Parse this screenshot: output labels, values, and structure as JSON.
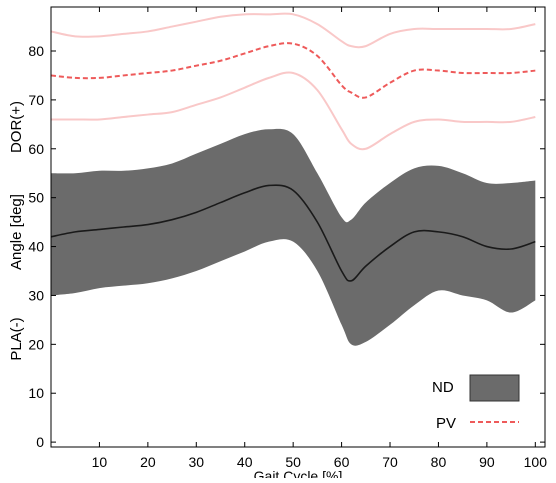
{
  "chart_data": {
    "type": "area",
    "title": "",
    "xlabel": "Gait Cycle [%]",
    "ylabel_top": "DOR(+)",
    "ylabel_middle": "Angle [deg]",
    "ylabel_bottom": "PLA(-)",
    "xlim": [
      0,
      102
    ],
    "ylim": [
      -1,
      89
    ],
    "x_ticks": [
      "10",
      "20",
      "30",
      "40",
      "50",
      "60",
      "70",
      "80",
      "90",
      "100"
    ],
    "y_ticks": [
      "0",
      "10",
      "20",
      "30",
      "40",
      "50",
      "60",
      "70",
      "80"
    ],
    "grid": false,
    "legend_position": "bottom-right",
    "x": [
      0,
      5,
      10,
      15,
      20,
      25,
      30,
      35,
      40,
      45,
      50,
      55,
      60,
      62,
      65,
      70,
      75,
      80,
      85,
      90,
      95,
      100
    ],
    "series": [
      {
        "name": "ND",
        "style": "shaded band with solid mean line",
        "color": "#6b6b6b",
        "mean": [
          42,
          43,
          43.5,
          44,
          44.5,
          45.5,
          47,
          49,
          51,
          52.5,
          51.5,
          45,
          35,
          33,
          36,
          40,
          43,
          43,
          42,
          40,
          39.5,
          41
        ],
        "upper": [
          55,
          55,
          55.5,
          55.5,
          56,
          57,
          59,
          61,
          63,
          64,
          63,
          55,
          46,
          45.5,
          49,
          53,
          56,
          56.5,
          55,
          53,
          53,
          53.5
        ],
        "lower": [
          30,
          30.5,
          31.5,
          32,
          32.5,
          33.5,
          35,
          37,
          39,
          41,
          41,
          35,
          24,
          20,
          20.5,
          24,
          28,
          31,
          30,
          29,
          26.5,
          29
        ]
      },
      {
        "name": "PV",
        "style": "dashed mean with light bands",
        "color": "#ee5a5a",
        "band_color": "#f9c8c8",
        "mean": [
          75,
          74.5,
          74.5,
          75,
          75.5,
          76,
          77,
          78,
          79.5,
          81,
          81.5,
          79,
          73,
          71.5,
          70.5,
          73.5,
          76,
          76,
          75.5,
          75.5,
          75.5,
          76
        ],
        "upper": [
          84,
          83,
          83,
          83.5,
          84,
          85,
          86,
          87,
          87.5,
          87.5,
          87.5,
          85.5,
          82,
          81,
          81,
          83.5,
          84.5,
          84.5,
          84.5,
          84.5,
          84.5,
          85.5
        ],
        "lower": [
          66,
          66,
          66,
          66.5,
          67,
          67.5,
          69,
          70.5,
          72.5,
          74.5,
          75.5,
          72,
          64,
          61,
          60,
          63,
          65.5,
          66,
          65.5,
          65.5,
          65.5,
          66.5
        ]
      }
    ]
  }
}
